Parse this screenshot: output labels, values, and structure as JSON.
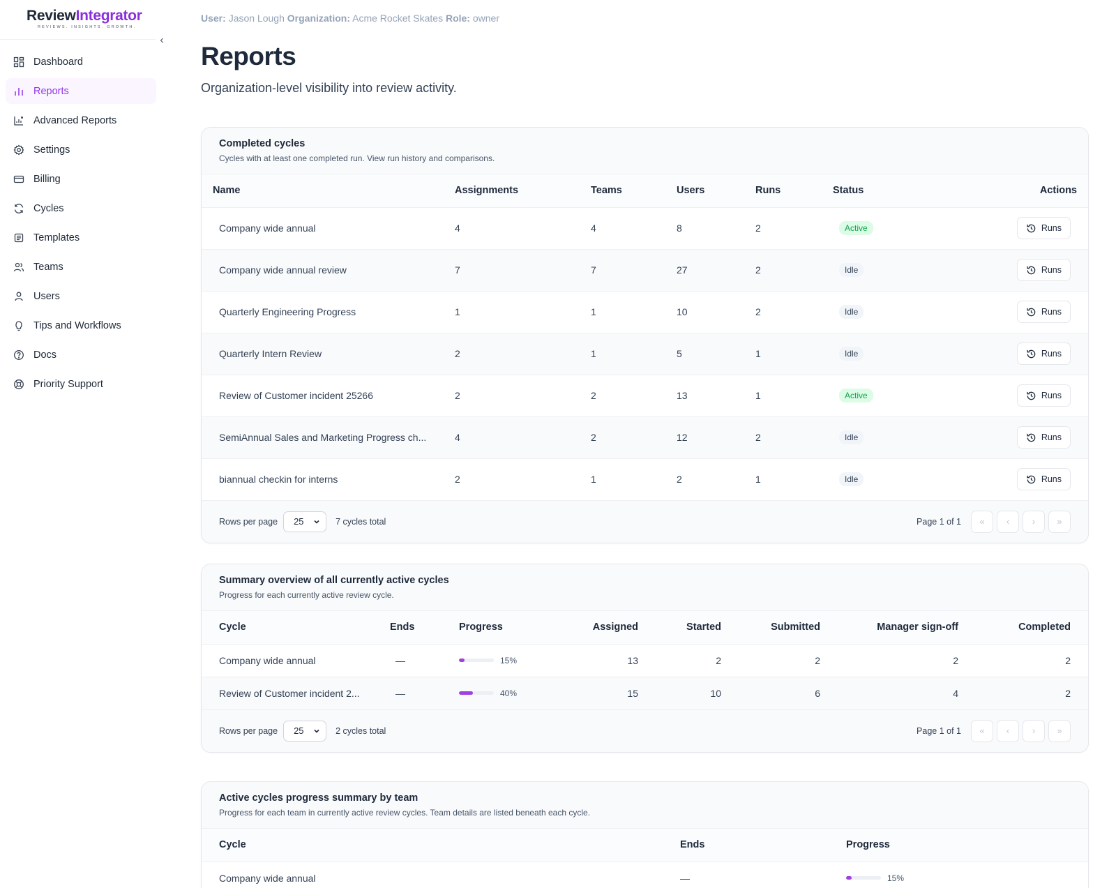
{
  "brand": {
    "name_part1": "Review",
    "name_part2": "Integrator",
    "tagline": "REVIEWS. INSIGHTS. GROWTH."
  },
  "nav": [
    {
      "label": "Dashboard",
      "icon": "dashboard-icon"
    },
    {
      "label": "Reports",
      "icon": "bar-chart-icon",
      "active": true
    },
    {
      "label": "Advanced Reports",
      "icon": "chart-icon"
    },
    {
      "label": "Settings",
      "icon": "gear-icon"
    },
    {
      "label": "Billing",
      "icon": "credit-card-icon"
    },
    {
      "label": "Cycles",
      "icon": "refresh-icon"
    },
    {
      "label": "Templates",
      "icon": "template-icon"
    },
    {
      "label": "Teams",
      "icon": "users-icon"
    },
    {
      "label": "Users",
      "icon": "user-icon"
    },
    {
      "label": "Tips and Workflows",
      "icon": "lightbulb-icon"
    },
    {
      "label": "Docs",
      "icon": "help-circle-icon"
    },
    {
      "label": "Priority Support",
      "icon": "lifebuoy-icon"
    }
  ],
  "userbar": {
    "user_label": "User:",
    "user": "Jason Lough",
    "org_label": "Organization:",
    "org": "Acme Rocket Skates",
    "role_label": "Role:",
    "role": "owner"
  },
  "page": {
    "title": "Reports",
    "subtitle": "Organization-level visibility into review activity."
  },
  "completed": {
    "title": "Completed cycles",
    "description": "Cycles with at least one completed run. View run history and comparisons.",
    "columns": [
      "Name",
      "Assignments",
      "Teams",
      "Users",
      "Runs",
      "Status",
      "Actions"
    ],
    "rows": [
      {
        "name": "Company wide annual",
        "assignments": "4",
        "teams": "4",
        "users": "8",
        "runs": "2",
        "status": "Active",
        "action": "Runs"
      },
      {
        "name": "Company wide annual review",
        "assignments": "7",
        "teams": "7",
        "users": "27",
        "runs": "2",
        "status": "Idle",
        "action": "Runs"
      },
      {
        "name": "Quarterly Engineering Progress",
        "assignments": "1",
        "teams": "1",
        "users": "10",
        "runs": "2",
        "status": "Idle",
        "action": "Runs"
      },
      {
        "name": "Quarterly Intern Review",
        "assignments": "2",
        "teams": "1",
        "users": "5",
        "runs": "1",
        "status": "Idle",
        "action": "Runs"
      },
      {
        "name": "Review of Customer incident 25266",
        "assignments": "2",
        "teams": "2",
        "users": "13",
        "runs": "1",
        "status": "Active",
        "action": "Runs"
      },
      {
        "name": "SemiAnnual Sales and Marketing Progress ch...",
        "assignments": "4",
        "teams": "2",
        "users": "12",
        "runs": "2",
        "status": "Idle",
        "action": "Runs"
      },
      {
        "name": "biannual checkin for interns",
        "assignments": "2",
        "teams": "1",
        "users": "2",
        "runs": "1",
        "status": "Idle",
        "action": "Runs"
      }
    ],
    "footer": {
      "rows_label": "Rows per page",
      "rows_value": "25",
      "total": "7 cycles total",
      "page_info": "Page 1 of 1"
    }
  },
  "summary": {
    "title": "Summary overview of all currently active cycles",
    "description": "Progress for each currently active review cycle.",
    "columns": [
      "Cycle",
      "Ends",
      "Progress",
      "Assigned",
      "Started",
      "Submitted",
      "Manager sign-off",
      "Completed"
    ],
    "rows": [
      {
        "cycle": "Company wide annual",
        "ends": "—",
        "progress": 15,
        "progress_label": "15%",
        "assigned": "13",
        "started": "2",
        "submitted": "2",
        "signoff": "2",
        "completed": "2"
      },
      {
        "cycle": "Review of Customer incident 2...",
        "ends": "—",
        "progress": 40,
        "progress_label": "40%",
        "assigned": "15",
        "started": "10",
        "submitted": "6",
        "signoff": "4",
        "completed": "2"
      }
    ],
    "footer": {
      "rows_label": "Rows per page",
      "rows_value": "25",
      "total": "2 cycles total",
      "page_info": "Page 1 of 1"
    }
  },
  "by_team": {
    "title": "Active cycles progress summary by team",
    "description": "Progress for each team in currently active review cycles. Team details are listed beneath each cycle.",
    "columns": [
      "Cycle",
      "Ends",
      "Progress"
    ],
    "rows": [
      {
        "cycle": "Company wide annual",
        "ends": "—",
        "progress": 15,
        "progress_label": "15%"
      }
    ]
  },
  "colors": {
    "accent": "#9333ea",
    "active_bg": "#dcfce7",
    "active_text": "#16a34a",
    "progress_fill": "#a23fe0"
  }
}
